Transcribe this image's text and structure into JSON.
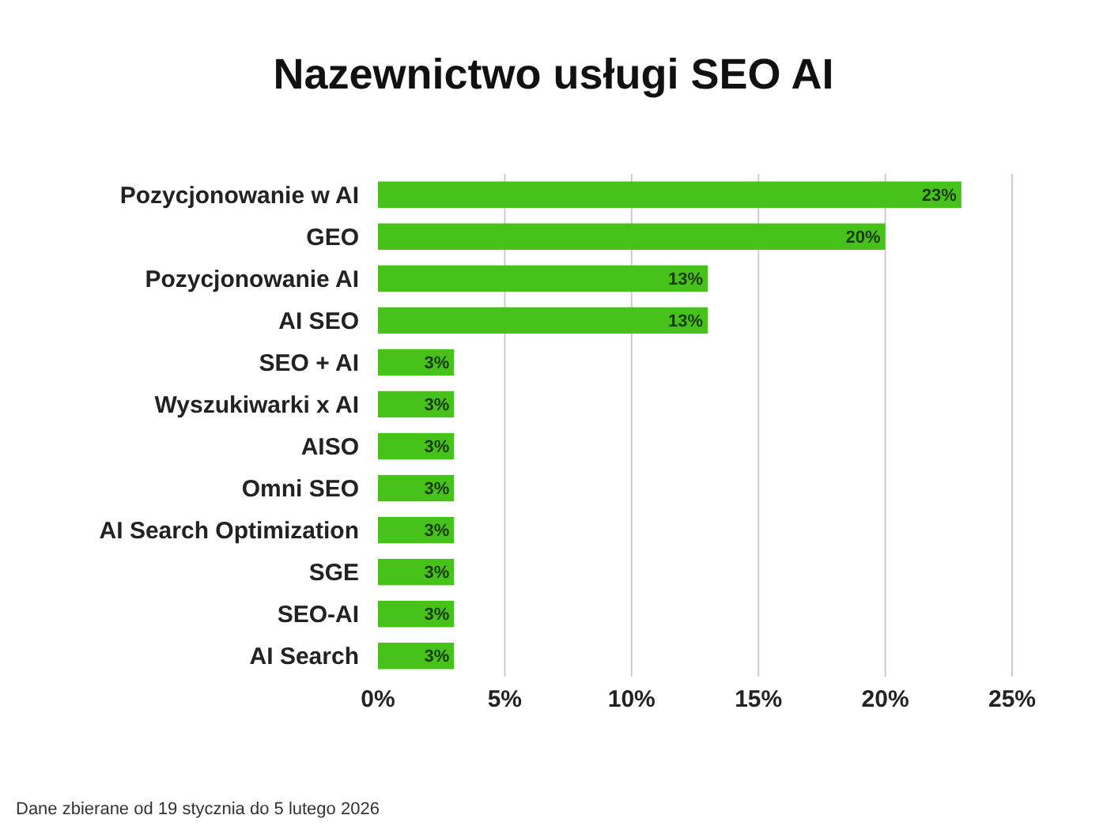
{
  "chart_data": {
    "type": "bar",
    "orientation": "horizontal",
    "title": "Nazewnictwo usługi SEO AI",
    "categories": [
      "Pozycjonowanie w AI",
      "GEO",
      "Pozycjonowanie AI",
      "AI SEO",
      "SEO + AI",
      "Wyszukiwarki x AI",
      "AISO",
      "Omni SEO",
      "AI Search Optimization",
      "SGE",
      "SEO-AI",
      "AI Search"
    ],
    "values": [
      23,
      20,
      13,
      13,
      3,
      3,
      3,
      3,
      3,
      3,
      3,
      3
    ],
    "color": "#47c21b",
    "value_labels": [
      "23%",
      "20%",
      "13%",
      "13%",
      "3%",
      "3%",
      "3%",
      "3%",
      "3%",
      "3%",
      "3%",
      "3%"
    ],
    "xlim": [
      0,
      25
    ],
    "xticks": [
      {
        "value": 0,
        "label": "0%"
      },
      {
        "value": 5,
        "label": "5%"
      },
      {
        "value": 10,
        "label": "10%"
      },
      {
        "value": 15,
        "label": "15%"
      },
      {
        "value": 20,
        "label": "20%"
      },
      {
        "value": 25,
        "label": "25%"
      }
    ],
    "grid": "x",
    "annotations": [
      "Dane zbierane od 19 stycznia do 5 lutego 2026"
    ]
  }
}
